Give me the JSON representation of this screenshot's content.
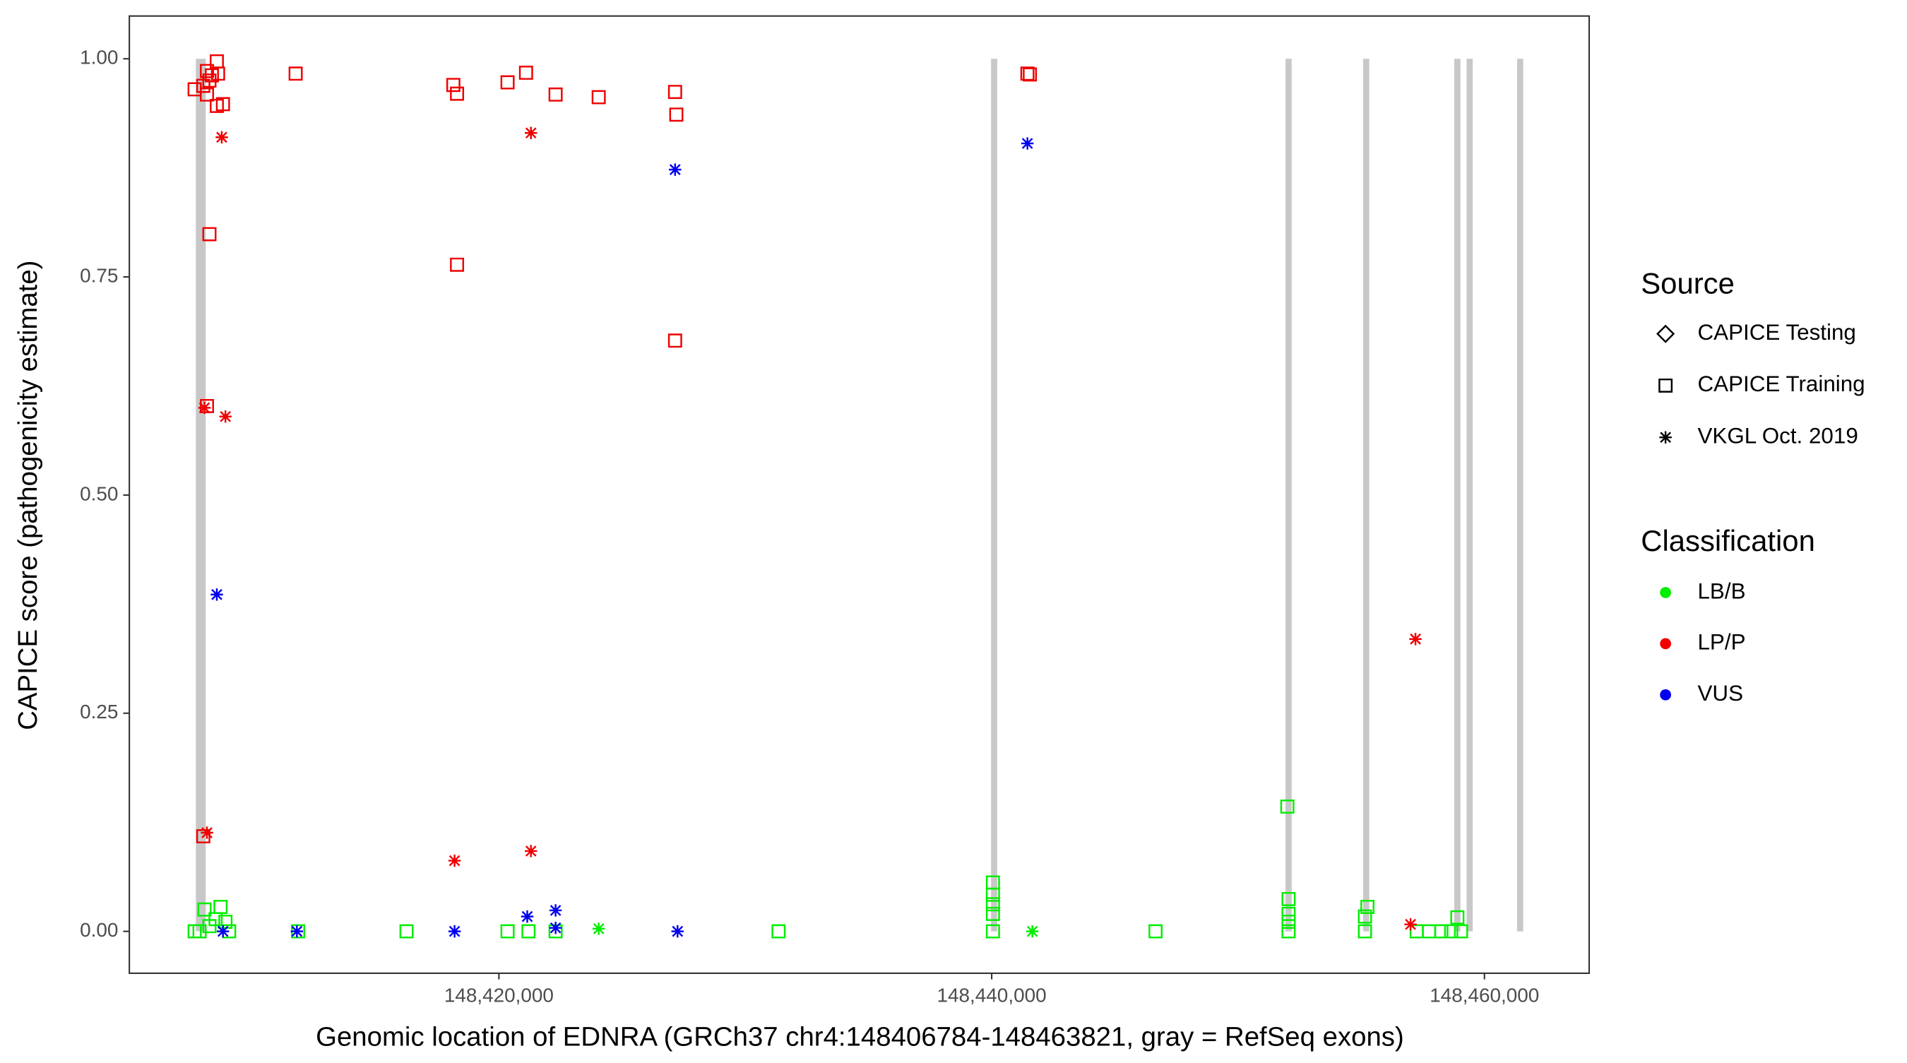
{
  "chart_data": {
    "type": "scatter",
    "x_label": "Genomic location of EDNRA (GRCh37 chr4:148406784-148463821, gray = RefSeq exons)",
    "y_label": "CAPICE score (pathogenicity estimate)",
    "xlim": [
      148405000,
      148464250
    ],
    "ylim": [
      -0.048,
      1.049
    ],
    "xticks": [
      {
        "value": 148420000,
        "label": "148,420,000"
      },
      {
        "value": 148440000,
        "label": "148,440,000"
      },
      {
        "value": 148460000,
        "label": "148,460,000"
      }
    ],
    "yticks": [
      {
        "value": 0,
        "label": "0.00"
      },
      {
        "value": 0.25,
        "label": "0.25"
      },
      {
        "value": 0.5,
        "label": "0.50"
      },
      {
        "value": 0.75,
        "label": "0.75"
      },
      {
        "value": 1,
        "label": "1.00"
      }
    ],
    "exon_color": "#c8c8c8",
    "exons": [
      [
        148407700,
        148408100
      ],
      [
        148439975,
        148440225
      ],
      [
        148451925,
        148452175
      ],
      [
        148455075,
        148455325
      ],
      [
        148458775,
        148459025
      ],
      [
        148459275,
        148459525
      ],
      [
        148461325,
        148461575
      ]
    ],
    "source_legend": {
      "title": "Source",
      "items": [
        {
          "label": "CAPICE Testing",
          "shape": "diamond"
        },
        {
          "label": "CAPICE Training",
          "shape": "square"
        },
        {
          "label": "VKGL Oct. 2019",
          "shape": "asterisk"
        }
      ]
    },
    "classification_legend": {
      "title": "Classification",
      "items": [
        {
          "label": "LB/B",
          "color": "#00ee00"
        },
        {
          "label": "LP/P",
          "color": "#ee0000"
        },
        {
          "label": "VUS",
          "color": "#0000ee"
        }
      ]
    },
    "series": [
      {
        "classification": "LB/B",
        "source": "CAPICE Training",
        "x": [
          148407650,
          148407850,
          148408050,
          148408250,
          148408500,
          148408700,
          148408900,
          148409050,
          148411850,
          148416250,
          148420350,
          148421200,
          148422300,
          148431350,
          148440050,
          148440050,
          148440050,
          148440050,
          148440050,
          148446650,
          148452000,
          148452050,
          148452050,
          148452050,
          148452050,
          148455150,
          148455250,
          148455150,
          148457250,
          148457750,
          148458250,
          148458650,
          148458900,
          148459050
        ],
        "values": [
          0,
          0,
          0.025,
          0.006,
          0.014,
          0.028,
          0.011,
          0,
          0,
          0,
          0,
          0,
          0,
          0,
          0.056,
          0.042,
          0.031,
          0.02,
          0,
          0,
          0.143,
          0.037,
          0.02,
          0.011,
          0,
          0.017,
          0.028,
          0,
          0,
          0,
          0,
          0,
          0.016,
          0
        ]
      },
      {
        "classification": "LB/B",
        "source": "VKGL Oct. 2019",
        "x": [
          148424050,
          148441650
        ],
        "values": [
          0.003,
          0
        ]
      },
      {
        "classification": "LP/P",
        "source": "CAPICE Training",
        "x": [
          148407650,
          148408000,
          148408150,
          148408250,
          148408150,
          148408350,
          148408550,
          148408600,
          148408550,
          148408800,
          148408250,
          148408150,
          148408000,
          148411750,
          148418150,
          148418300,
          148420350,
          148421100,
          148422300,
          148424050,
          148418300,
          148427150,
          148427200,
          148427150,
          148441450,
          148441550
        ],
        "values": [
          0.965,
          0.969,
          0.986,
          0.975,
          0.959,
          0.981,
          0.997,
          0.983,
          0.946,
          0.948,
          0.799,
          0.602,
          0.109,
          0.983,
          0.97,
          0.96,
          0.973,
          0.984,
          0.959,
          0.956,
          0.764,
          0.962,
          0.936,
          0.677,
          0.983,
          0.982
        ]
      },
      {
        "classification": "LP/P",
        "source": "VKGL Oct. 2019",
        "x": [
          148408750,
          148408050,
          148408900,
          148408150,
          148418200,
          148421300,
          148421300,
          148457200,
          148457000
        ],
        "values": [
          0.91,
          0.6,
          0.59,
          0.113,
          0.081,
          0.915,
          0.092,
          0.335,
          0.008
        ]
      },
      {
        "classification": "VUS",
        "source": "VKGL Oct. 2019",
        "x": [
          148408550,
          148427150,
          148441450,
          148408800,
          148411800,
          148418200,
          148421150,
          148422300,
          148422300,
          148427250
        ],
        "values": [
          0.386,
          0.873,
          0.903,
          0,
          0,
          0,
          0.017,
          0.024,
          0.004,
          0
        ]
      }
    ]
  }
}
